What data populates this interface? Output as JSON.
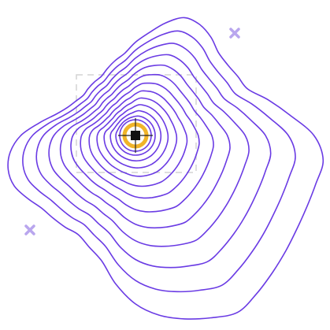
{
  "colors": {
    "background": "#ffffff",
    "contour_stroke": "#6a3be4",
    "selection_box": "#d4d4d4",
    "marker_x": "#b9a6ee",
    "target_ring": "#f0b429",
    "target_core": "#111111",
    "crosshair": "#222222"
  },
  "icons": {
    "marker_x": "x-mark-icon",
    "target": "target-crosshair-icon"
  },
  "contour_levels": 13
}
